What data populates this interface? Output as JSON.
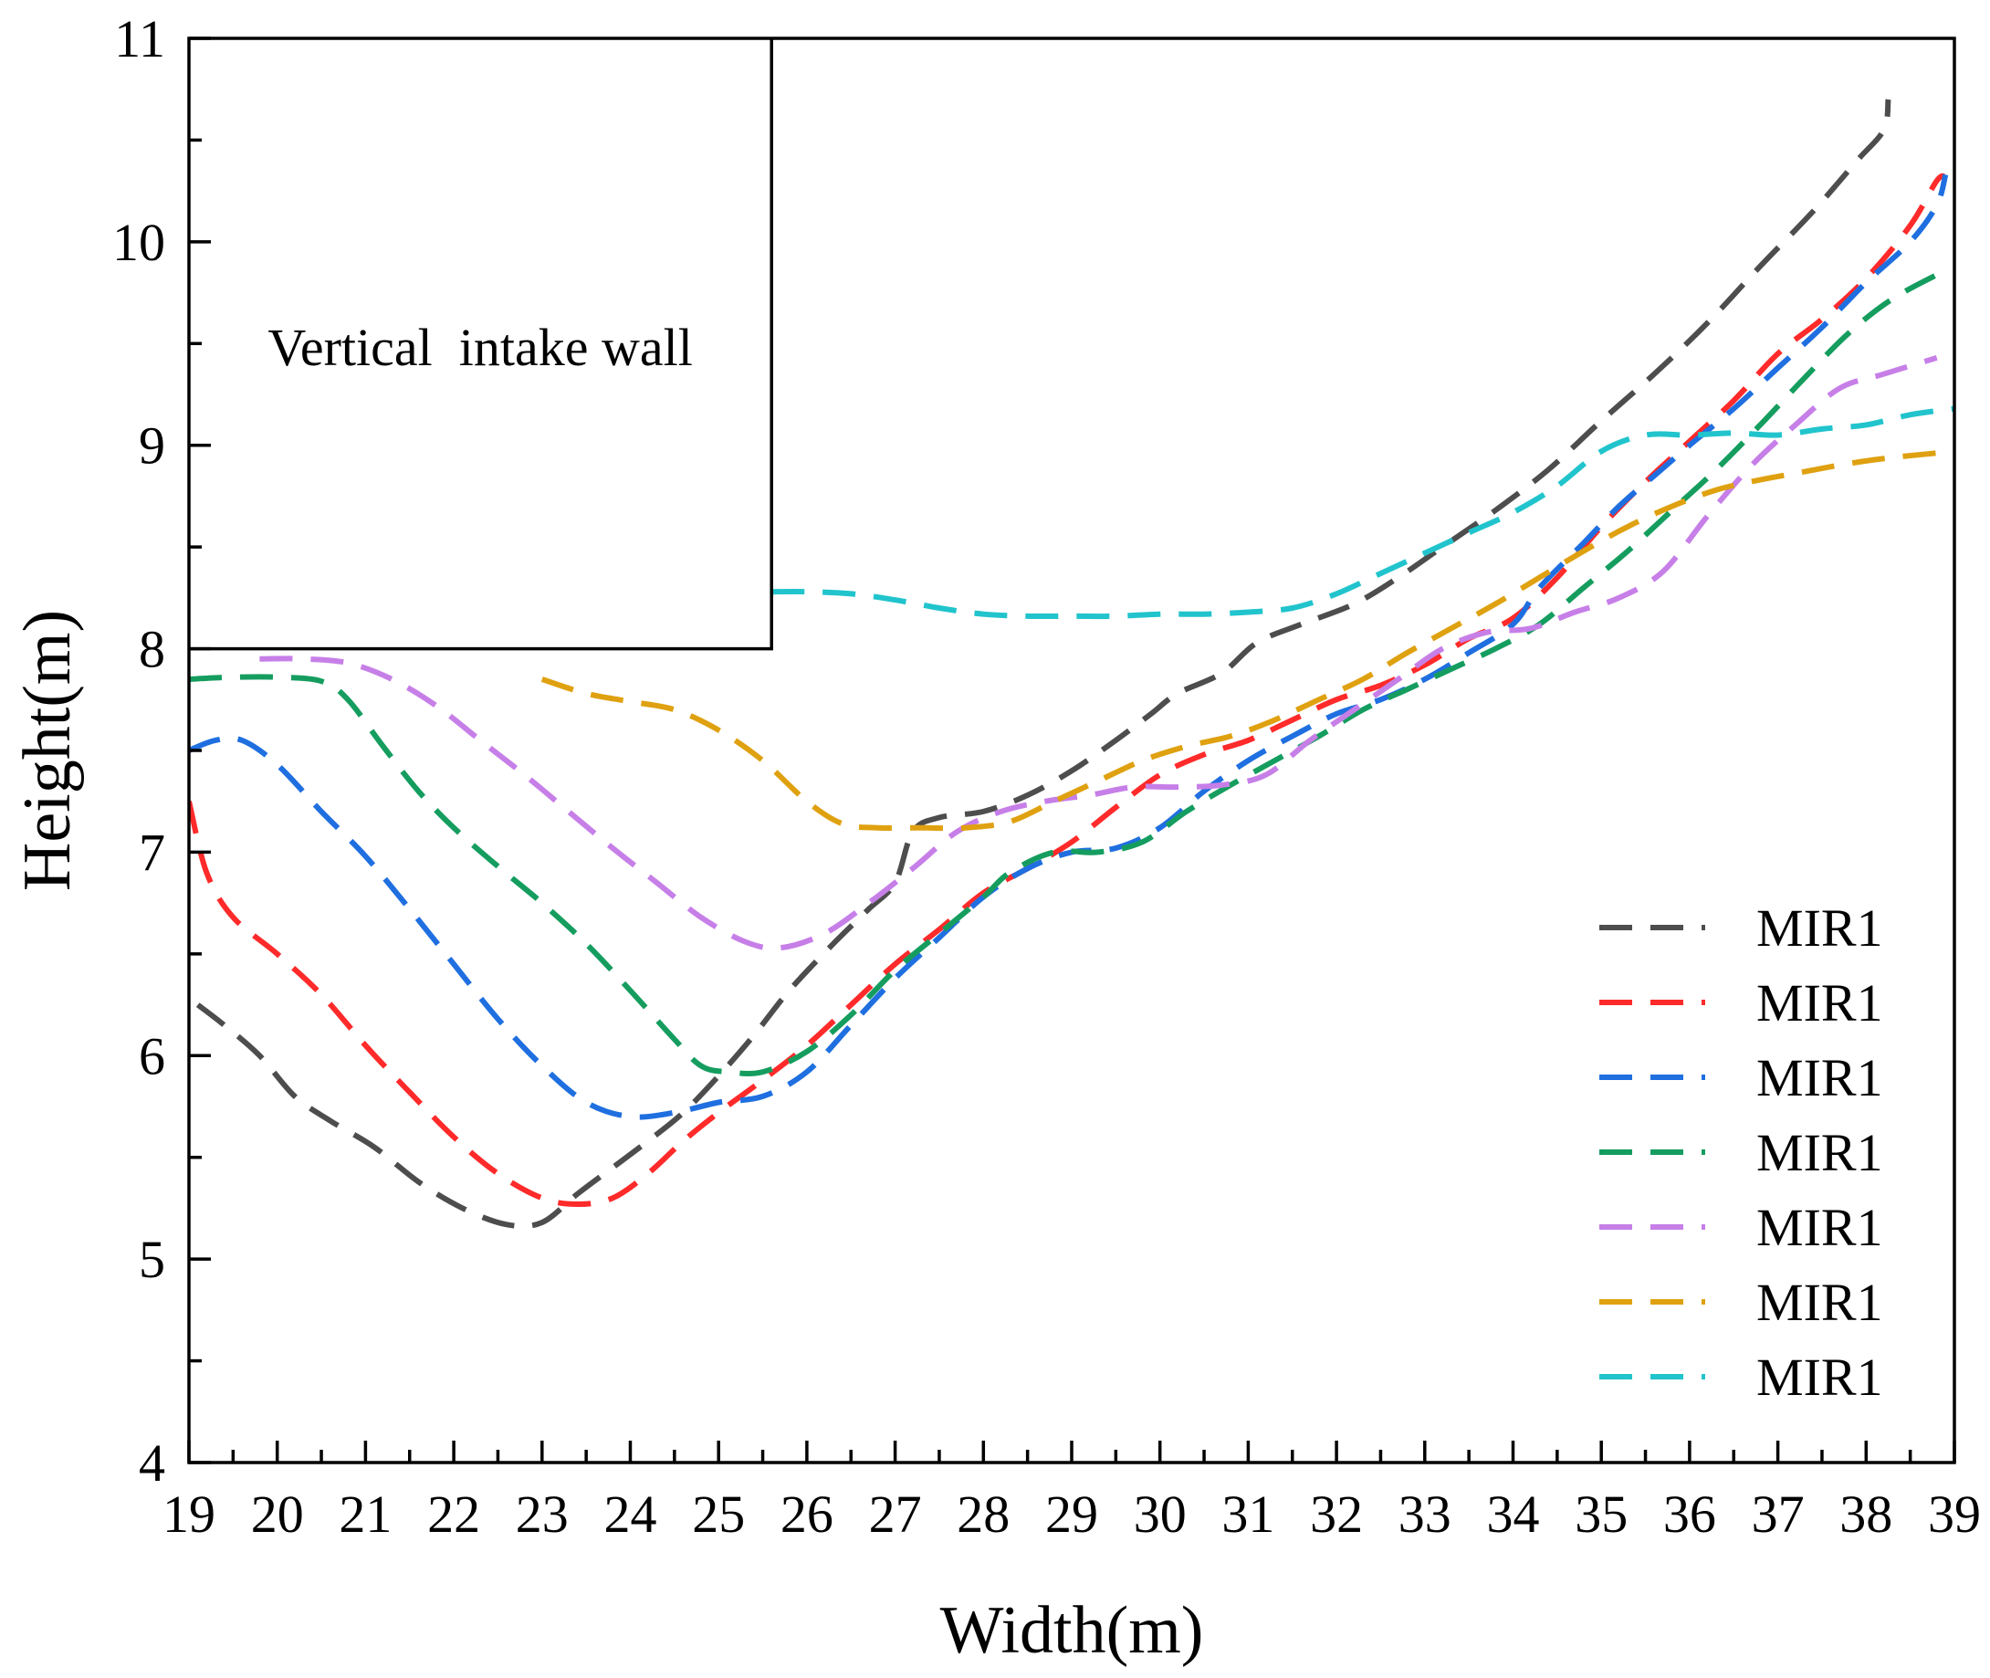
{
  "chart_data": {
    "type": "line",
    "title": "",
    "xlabel": "Width(m)",
    "ylabel": "Height(m)",
    "xlim": [
      19,
      39
    ],
    "ylim": [
      4,
      11
    ],
    "x_ticks": [
      19,
      20,
      21,
      22,
      23,
      24,
      25,
      26,
      27,
      28,
      29,
      30,
      31,
      32,
      33,
      34,
      35,
      36,
      37,
      38,
      39
    ],
    "y_ticks": [
      4,
      5,
      6,
      7,
      8,
      9,
      10,
      11
    ],
    "grid": false,
    "legend_position": "bottom-right",
    "annotation": {
      "text": "Vertical  intake wall",
      "region": {
        "x": [
          19,
          25.6
        ],
        "y": [
          8,
          11
        ]
      }
    },
    "series": [
      {
        "name": "MIR1",
        "color": "#4d4d4d",
        "points": [
          [
            19.1,
            6.25
          ],
          [
            19.4,
            6.15
          ],
          [
            19.8,
            6.0
          ],
          [
            20.2,
            5.8
          ],
          [
            20.6,
            5.68
          ],
          [
            21.1,
            5.55
          ],
          [
            21.6,
            5.38
          ],
          [
            22.1,
            5.25
          ],
          [
            22.6,
            5.17
          ],
          [
            23.0,
            5.18
          ],
          [
            23.4,
            5.32
          ],
          [
            23.8,
            5.45
          ],
          [
            24.2,
            5.58
          ],
          [
            24.6,
            5.72
          ],
          [
            25.0,
            5.9
          ],
          [
            25.4,
            6.1
          ],
          [
            25.8,
            6.32
          ],
          [
            26.3,
            6.55
          ],
          [
            26.7,
            6.72
          ],
          [
            27.0,
            6.85
          ],
          [
            27.2,
            7.1
          ],
          [
            27.5,
            7.17
          ],
          [
            28.0,
            7.2
          ],
          [
            28.5,
            7.28
          ],
          [
            29.0,
            7.4
          ],
          [
            29.5,
            7.55
          ],
          [
            29.9,
            7.68
          ],
          [
            30.2,
            7.78
          ],
          [
            30.7,
            7.88
          ],
          [
            31.1,
            8.03
          ],
          [
            31.6,
            8.12
          ],
          [
            32.2,
            8.22
          ],
          [
            32.7,
            8.35
          ],
          [
            33.2,
            8.5
          ],
          [
            33.8,
            8.68
          ],
          [
            34.4,
            8.88
          ],
          [
            35.0,
            9.12
          ],
          [
            35.6,
            9.35
          ],
          [
            36.2,
            9.6
          ],
          [
            36.8,
            9.88
          ],
          [
            37.4,
            10.15
          ],
          [
            37.9,
            10.4
          ],
          [
            38.2,
            10.55
          ],
          [
            38.25,
            10.7
          ]
        ]
      },
      {
        "name": "MIR1",
        "color": "#ff2a2a",
        "points": [
          [
            19.0,
            7.25
          ],
          [
            19.2,
            6.9
          ],
          [
            19.5,
            6.68
          ],
          [
            20.0,
            6.5
          ],
          [
            20.5,
            6.3
          ],
          [
            21.0,
            6.05
          ],
          [
            21.5,
            5.82
          ],
          [
            22.0,
            5.6
          ],
          [
            22.5,
            5.42
          ],
          [
            23.0,
            5.3
          ],
          [
            23.4,
            5.27
          ],
          [
            23.8,
            5.3
          ],
          [
            24.2,
            5.42
          ],
          [
            24.6,
            5.58
          ],
          [
            25.0,
            5.72
          ],
          [
            25.5,
            5.88
          ],
          [
            26.0,
            6.05
          ],
          [
            26.5,
            6.25
          ],
          [
            27.0,
            6.45
          ],
          [
            27.5,
            6.62
          ],
          [
            28.0,
            6.8
          ],
          [
            28.5,
            6.92
          ],
          [
            29.0,
            7.05
          ],
          [
            29.5,
            7.22
          ],
          [
            30.0,
            7.38
          ],
          [
            30.5,
            7.48
          ],
          [
            31.0,
            7.55
          ],
          [
            31.5,
            7.65
          ],
          [
            32.0,
            7.75
          ],
          [
            32.5,
            7.82
          ],
          [
            33.0,
            7.92
          ],
          [
            33.5,
            8.05
          ],
          [
            34.0,
            8.15
          ],
          [
            34.5,
            8.35
          ],
          [
            35.0,
            8.6
          ],
          [
            35.5,
            8.82
          ],
          [
            36.0,
            9.02
          ],
          [
            36.5,
            9.22
          ],
          [
            37.0,
            9.45
          ],
          [
            37.5,
            9.62
          ],
          [
            38.0,
            9.82
          ],
          [
            38.5,
            10.08
          ],
          [
            38.8,
            10.3
          ],
          [
            38.9,
            10.32
          ]
        ]
      },
      {
        "name": "MIR1",
        "color": "#1f6fe0",
        "points": [
          [
            19.0,
            7.5
          ],
          [
            19.3,
            7.55
          ],
          [
            19.6,
            7.55
          ],
          [
            20.0,
            7.43
          ],
          [
            20.5,
            7.2
          ],
          [
            21.0,
            6.98
          ],
          [
            21.5,
            6.72
          ],
          [
            22.0,
            6.45
          ],
          [
            22.5,
            6.18
          ],
          [
            23.0,
            5.95
          ],
          [
            23.5,
            5.77
          ],
          [
            24.0,
            5.7
          ],
          [
            24.5,
            5.72
          ],
          [
            25.0,
            5.77
          ],
          [
            25.5,
            5.8
          ],
          [
            26.0,
            5.92
          ],
          [
            26.5,
            6.15
          ],
          [
            27.0,
            6.38
          ],
          [
            27.5,
            6.58
          ],
          [
            28.0,
            6.78
          ],
          [
            28.5,
            6.92
          ],
          [
            29.0,
            7.0
          ],
          [
            29.5,
            7.02
          ],
          [
            30.0,
            7.12
          ],
          [
            30.5,
            7.3
          ],
          [
            31.0,
            7.45
          ],
          [
            31.5,
            7.57
          ],
          [
            32.0,
            7.68
          ],
          [
            32.5,
            7.75
          ],
          [
            33.0,
            7.85
          ],
          [
            33.5,
            7.98
          ],
          [
            34.0,
            8.12
          ],
          [
            34.3,
            8.3
          ],
          [
            34.8,
            8.52
          ],
          [
            35.2,
            8.7
          ],
          [
            35.6,
            8.85
          ],
          [
            36.0,
            9.0
          ],
          [
            36.5,
            9.18
          ],
          [
            37.0,
            9.38
          ],
          [
            37.5,
            9.58
          ],
          [
            38.0,
            9.8
          ],
          [
            38.5,
            10.0
          ],
          [
            38.8,
            10.18
          ],
          [
            38.9,
            10.33
          ]
        ]
      },
      {
        "name": "MIR1",
        "color": "#159d5f",
        "points": [
          [
            19.0,
            7.85
          ],
          [
            19.5,
            7.86
          ],
          [
            20.0,
            7.86
          ],
          [
            20.5,
            7.84
          ],
          [
            20.8,
            7.75
          ],
          [
            21.2,
            7.52
          ],
          [
            21.6,
            7.3
          ],
          [
            22.0,
            7.12
          ],
          [
            22.5,
            6.93
          ],
          [
            23.0,
            6.75
          ],
          [
            23.5,
            6.55
          ],
          [
            24.0,
            6.32
          ],
          [
            24.5,
            6.08
          ],
          [
            24.8,
            5.95
          ],
          [
            25.1,
            5.92
          ],
          [
            25.5,
            5.92
          ],
          [
            26.0,
            6.02
          ],
          [
            26.5,
            6.2
          ],
          [
            27.0,
            6.42
          ],
          [
            27.5,
            6.6
          ],
          [
            28.0,
            6.78
          ],
          [
            28.3,
            6.9
          ],
          [
            28.8,
            7.0
          ],
          [
            29.3,
            7.0
          ],
          [
            29.8,
            7.05
          ],
          [
            30.3,
            7.2
          ],
          [
            30.8,
            7.33
          ],
          [
            31.3,
            7.45
          ],
          [
            31.8,
            7.57
          ],
          [
            32.3,
            7.7
          ],
          [
            32.8,
            7.8
          ],
          [
            33.3,
            7.9
          ],
          [
            33.8,
            8.0
          ],
          [
            34.3,
            8.12
          ],
          [
            34.8,
            8.3
          ],
          [
            35.3,
            8.48
          ],
          [
            35.8,
            8.68
          ],
          [
            36.3,
            8.88
          ],
          [
            36.8,
            9.1
          ],
          [
            37.3,
            9.33
          ],
          [
            37.8,
            9.55
          ],
          [
            38.3,
            9.72
          ],
          [
            38.9,
            9.86
          ]
        ]
      },
      {
        "name": "MIR1",
        "color": "#c77fe8",
        "points": [
          [
            19.8,
            7.95
          ],
          [
            20.3,
            7.95
          ],
          [
            20.8,
            7.93
          ],
          [
            21.3,
            7.85
          ],
          [
            21.8,
            7.72
          ],
          [
            22.3,
            7.55
          ],
          [
            22.8,
            7.38
          ],
          [
            23.3,
            7.2
          ],
          [
            23.8,
            7.02
          ],
          [
            24.3,
            6.85
          ],
          [
            24.8,
            6.68
          ],
          [
            25.3,
            6.56
          ],
          [
            25.7,
            6.53
          ],
          [
            26.2,
            6.6
          ],
          [
            26.7,
            6.75
          ],
          [
            27.2,
            6.92
          ],
          [
            27.7,
            7.1
          ],
          [
            28.2,
            7.2
          ],
          [
            28.7,
            7.25
          ],
          [
            29.2,
            7.28
          ],
          [
            29.7,
            7.32
          ],
          [
            30.2,
            7.32
          ],
          [
            30.7,
            7.33
          ],
          [
            31.2,
            7.38
          ],
          [
            31.7,
            7.55
          ],
          [
            32.2,
            7.7
          ],
          [
            32.7,
            7.85
          ],
          [
            33.2,
            8.0
          ],
          [
            33.7,
            8.08
          ],
          [
            34.2,
            8.1
          ],
          [
            34.7,
            8.18
          ],
          [
            35.2,
            8.25
          ],
          [
            35.7,
            8.38
          ],
          [
            36.2,
            8.65
          ],
          [
            36.7,
            8.9
          ],
          [
            37.2,
            9.1
          ],
          [
            37.7,
            9.28
          ],
          [
            38.2,
            9.35
          ],
          [
            38.8,
            9.43
          ]
        ]
      },
      {
        "name": "MIR1",
        "color": "#dfa110",
        "points": [
          [
            23.0,
            7.85
          ],
          [
            23.5,
            7.78
          ],
          [
            24.0,
            7.74
          ],
          [
            24.5,
            7.7
          ],
          [
            25.0,
            7.6
          ],
          [
            25.5,
            7.45
          ],
          [
            26.0,
            7.25
          ],
          [
            26.4,
            7.14
          ],
          [
            26.8,
            7.12
          ],
          [
            27.3,
            7.12
          ],
          [
            27.8,
            7.12
          ],
          [
            28.3,
            7.15
          ],
          [
            28.8,
            7.25
          ],
          [
            29.3,
            7.35
          ],
          [
            29.8,
            7.45
          ],
          [
            30.3,
            7.52
          ],
          [
            30.8,
            7.57
          ],
          [
            31.3,
            7.65
          ],
          [
            31.8,
            7.75
          ],
          [
            32.3,
            7.85
          ],
          [
            32.8,
            7.98
          ],
          [
            33.3,
            8.1
          ],
          [
            33.8,
            8.22
          ],
          [
            34.3,
            8.35
          ],
          [
            34.8,
            8.48
          ],
          [
            35.3,
            8.6
          ],
          [
            35.8,
            8.7
          ],
          [
            36.3,
            8.78
          ],
          [
            36.8,
            8.83
          ],
          [
            37.3,
            8.87
          ],
          [
            37.8,
            8.91
          ],
          [
            38.3,
            8.94
          ],
          [
            39.0,
            8.97
          ]
        ]
      },
      {
        "name": "MIR1",
        "color": "#21c4cc",
        "points": [
          [
            25.6,
            8.28
          ],
          [
            26.0,
            8.28
          ],
          [
            26.5,
            8.27
          ],
          [
            27.0,
            8.24
          ],
          [
            27.5,
            8.2
          ],
          [
            28.0,
            8.17
          ],
          [
            28.5,
            8.16
          ],
          [
            29.0,
            8.16
          ],
          [
            29.5,
            8.16
          ],
          [
            30.0,
            8.17
          ],
          [
            30.5,
            8.17
          ],
          [
            31.0,
            8.18
          ],
          [
            31.5,
            8.2
          ],
          [
            32.0,
            8.27
          ],
          [
            32.5,
            8.37
          ],
          [
            33.0,
            8.47
          ],
          [
            33.5,
            8.57
          ],
          [
            34.0,
            8.67
          ],
          [
            34.5,
            8.8
          ],
          [
            35.0,
            8.97
          ],
          [
            35.5,
            9.05
          ],
          [
            36.0,
            9.05
          ],
          [
            36.5,
            9.06
          ],
          [
            37.0,
            9.05
          ],
          [
            37.5,
            9.08
          ],
          [
            38.0,
            9.1
          ],
          [
            38.5,
            9.15
          ],
          [
            39.0,
            9.18
          ]
        ]
      }
    ]
  }
}
